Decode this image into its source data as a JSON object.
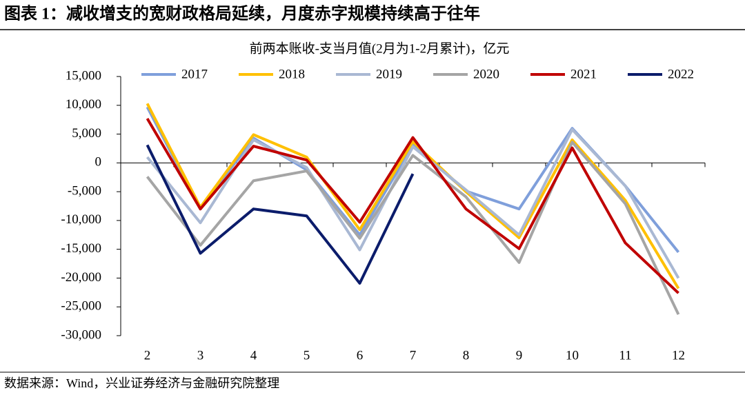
{
  "header": {
    "title": "图表 1：减收增支的宽财政格局延续，月度赤字规模持续高于往年"
  },
  "chart_data": {
    "type": "line",
    "title": "前两本账收-支当月值(2月为1-2月累计)，亿元",
    "categories": [
      "2",
      "3",
      "4",
      "5",
      "6",
      "7",
      "8",
      "9",
      "10",
      "11",
      "12"
    ],
    "series": [
      {
        "name": "2017",
        "color": "#7f9fdb",
        "values": [
          9700,
          -8000,
          4300,
          -1200,
          -12500,
          3100,
          -4900,
          -8000,
          6000,
          -4000,
          -15500
        ]
      },
      {
        "name": "2018",
        "color": "#ffc000",
        "values": [
          10300,
          -7700,
          4900,
          1000,
          -11600,
          3700,
          -5000,
          -13000,
          4000,
          -6500,
          -21800
        ]
      },
      {
        "name": "2019",
        "color": "#a9b8d3",
        "values": [
          1000,
          -10400,
          4000,
          -800,
          -15100,
          2800,
          -4700,
          -12500,
          5800,
          -4000,
          -20000
        ]
      },
      {
        "name": "2020",
        "color": "#a5a5a5",
        "values": [
          -2400,
          -14300,
          -3100,
          -1400,
          -13100,
          1300,
          -5900,
          -17300,
          3600,
          -7100,
          -26300
        ]
      },
      {
        "name": "2021",
        "color": "#c00000",
        "values": [
          7700,
          -8000,
          2900,
          500,
          -10300,
          4400,
          -8000,
          -14900,
          2600,
          -13900,
          -22600
        ]
      },
      {
        "name": "2022",
        "color": "#0b1c6b",
        "values": [
          3100,
          -15700,
          -8000,
          -9200,
          -20900,
          -1900,
          null,
          null,
          null,
          null,
          null
        ]
      }
    ],
    "ylim": [
      -30000,
      15000
    ],
    "yticks": [
      {
        "value": -30000,
        "label": "-30,000"
      },
      {
        "value": -25000,
        "label": "-25,000"
      },
      {
        "value": -20000,
        "label": "-20,000"
      },
      {
        "value": -15000,
        "label": "-15,000"
      },
      {
        "value": -10000,
        "label": "-10,000"
      },
      {
        "value": -5000,
        "label": "-5,000"
      },
      0,
      {
        "value": 5000,
        "label": "5,000"
      },
      {
        "value": 10000,
        "label": "10,000"
      },
      {
        "value": 15000,
        "label": "15,000"
      }
    ],
    "legend": "top"
  },
  "source": "数据来源：Wind，兴业证券经济与金融研究院整理"
}
